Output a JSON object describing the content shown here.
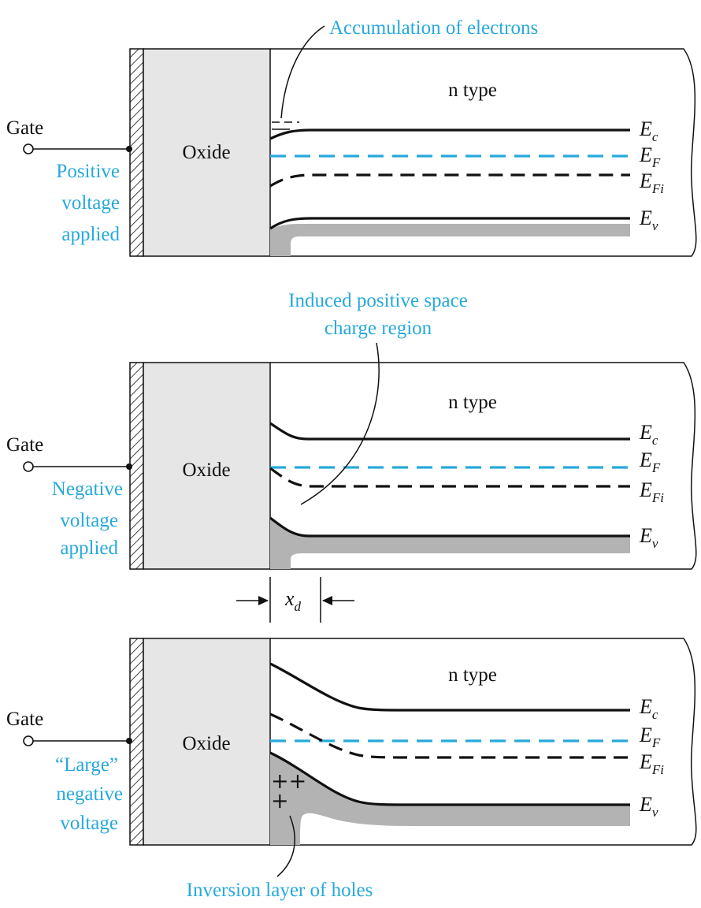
{
  "panels": [
    {
      "gate_label": "Gate",
      "voltage_lines": [
        "Positive",
        "voltage",
        "applied"
      ],
      "oxide_label": "Oxide",
      "semiconductor_label": "n type",
      "bands": {
        "ec": "E",
        "ec_sub": "c",
        "ef": "E",
        "ef_sub": "F",
        "efi": "E",
        "efi_sub": "Fi",
        "ev": "E",
        "ev_sub": "v"
      }
    },
    {
      "gate_label": "Gate",
      "voltage_lines": [
        "Negative",
        "voltage",
        "applied"
      ],
      "oxide_label": "Oxide",
      "semiconductor_label": "n type",
      "bands": {
        "ec": "E",
        "ec_sub": "c",
        "ef": "E",
        "ef_sub": "F",
        "efi": "E",
        "efi_sub": "Fi",
        "ev": "E",
        "ev_sub": "v"
      }
    },
    {
      "gate_label": "Gate",
      "voltage_lines": [
        "“Large”",
        "negative",
        "voltage"
      ],
      "oxide_label": "Oxide",
      "semiconductor_label": "n type",
      "bands": {
        "ec": "E",
        "ec_sub": "c",
        "ef": "E",
        "ef_sub": "F",
        "efi": "E",
        "efi_sub": "Fi",
        "ev": "E",
        "ev_sub": "v"
      }
    }
  ],
  "annotations": {
    "accumulation": "Accumulation of electrons",
    "space_charge_line1": "Induced positive space",
    "space_charge_line2": "charge region",
    "depletion_width": "x",
    "depletion_width_sub": "d",
    "inversion": "Inversion layer of holes",
    "plus_signs": [
      "++",
      "+"
    ]
  },
  "colors": {
    "accent": "#27a9dc",
    "line": "#111111",
    "oxide_fill": "#e6e6e6",
    "valence_shade": "#b3b3b3"
  }
}
